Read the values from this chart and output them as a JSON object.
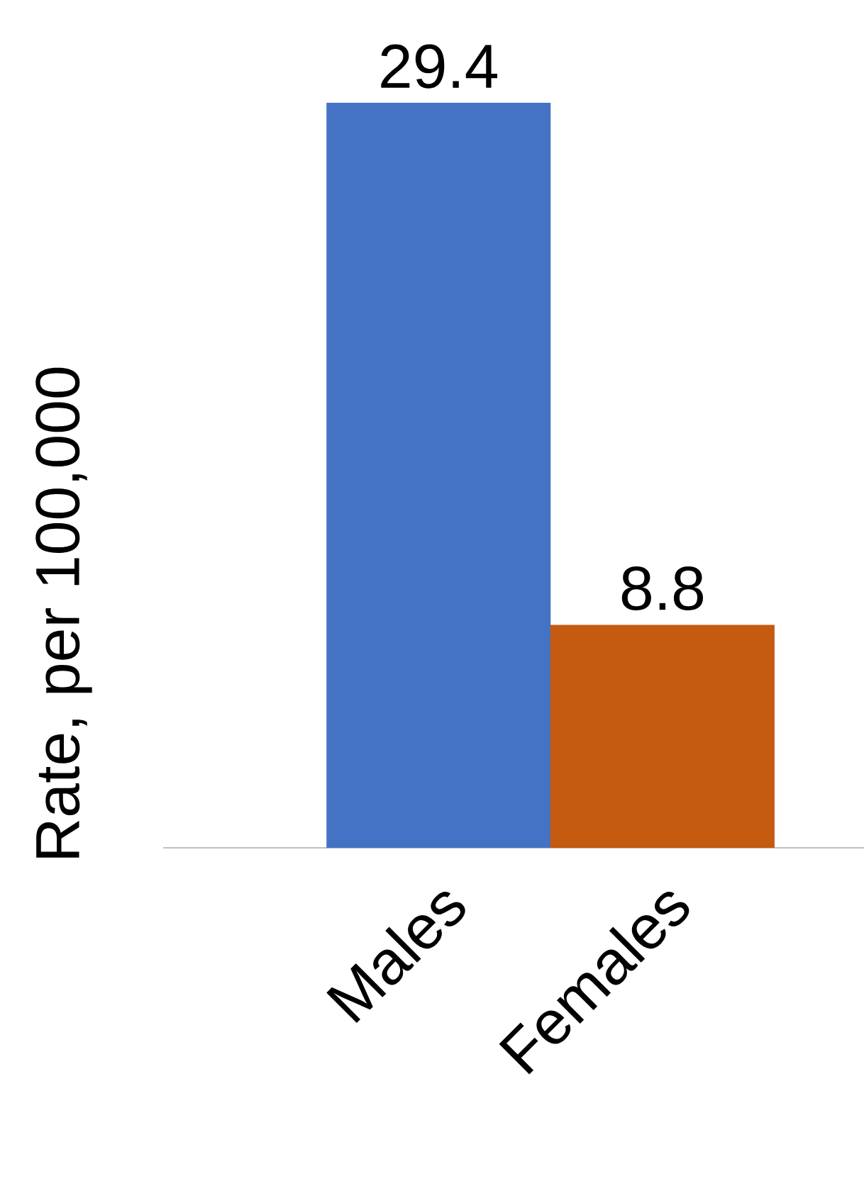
{
  "chart_data": {
    "type": "bar",
    "ylabel": "Rate, per 100,000",
    "categories": [
      "Males",
      "Females"
    ],
    "values": [
      29.4,
      8.8
    ],
    "colors": [
      "#4472c4",
      "#c55a11"
    ],
    "data_labels": true
  }
}
